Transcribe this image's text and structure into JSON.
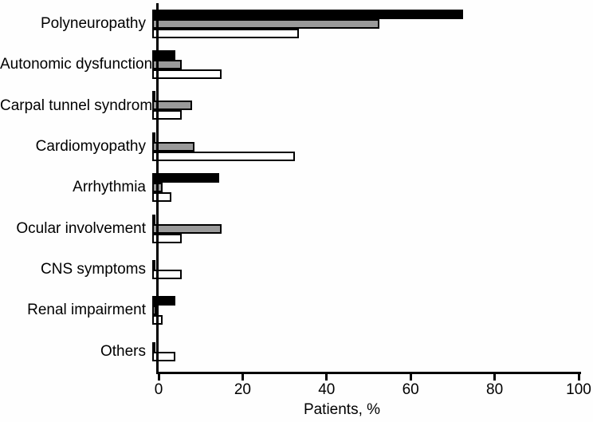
{
  "chart_data": {
    "type": "bar",
    "orientation": "horizontal",
    "title": "",
    "xlabel": "Patients, %",
    "ylabel": "",
    "xlim": [
      0,
      100
    ],
    "xticks": [
      0,
      20,
      40,
      60,
      80,
      100
    ],
    "grid": false,
    "legend": "none",
    "categories": [
      "Polyneuropathy",
      "Autonomic dysfunction",
      "Carpal tunnel syndrome",
      "Cardiomyopathy",
      "Arrhythmia",
      "Ocular involvement",
      "CNS symptoms",
      "Renal impairment",
      "Others"
    ],
    "series": [
      {
        "name": "black",
        "color": "#000000",
        "values": [
          74,
          5.5,
          0.5,
          0.5,
          16,
          0.5,
          0.5,
          5.5,
          0.5
        ]
      },
      {
        "name": "gray",
        "color": "#9a9a9a",
        "values": [
          54,
          7,
          9.5,
          10,
          2.5,
          16.5,
          0,
          1,
          0
        ]
      },
      {
        "name": "white",
        "color": "#ffffff",
        "values": [
          35,
          16.5,
          7,
          34,
          4.5,
          7,
          7,
          2.5,
          5.5
        ]
      }
    ]
  },
  "colors": {
    "axis": "#000000",
    "background": "#fefefe",
    "text": "#000000"
  }
}
